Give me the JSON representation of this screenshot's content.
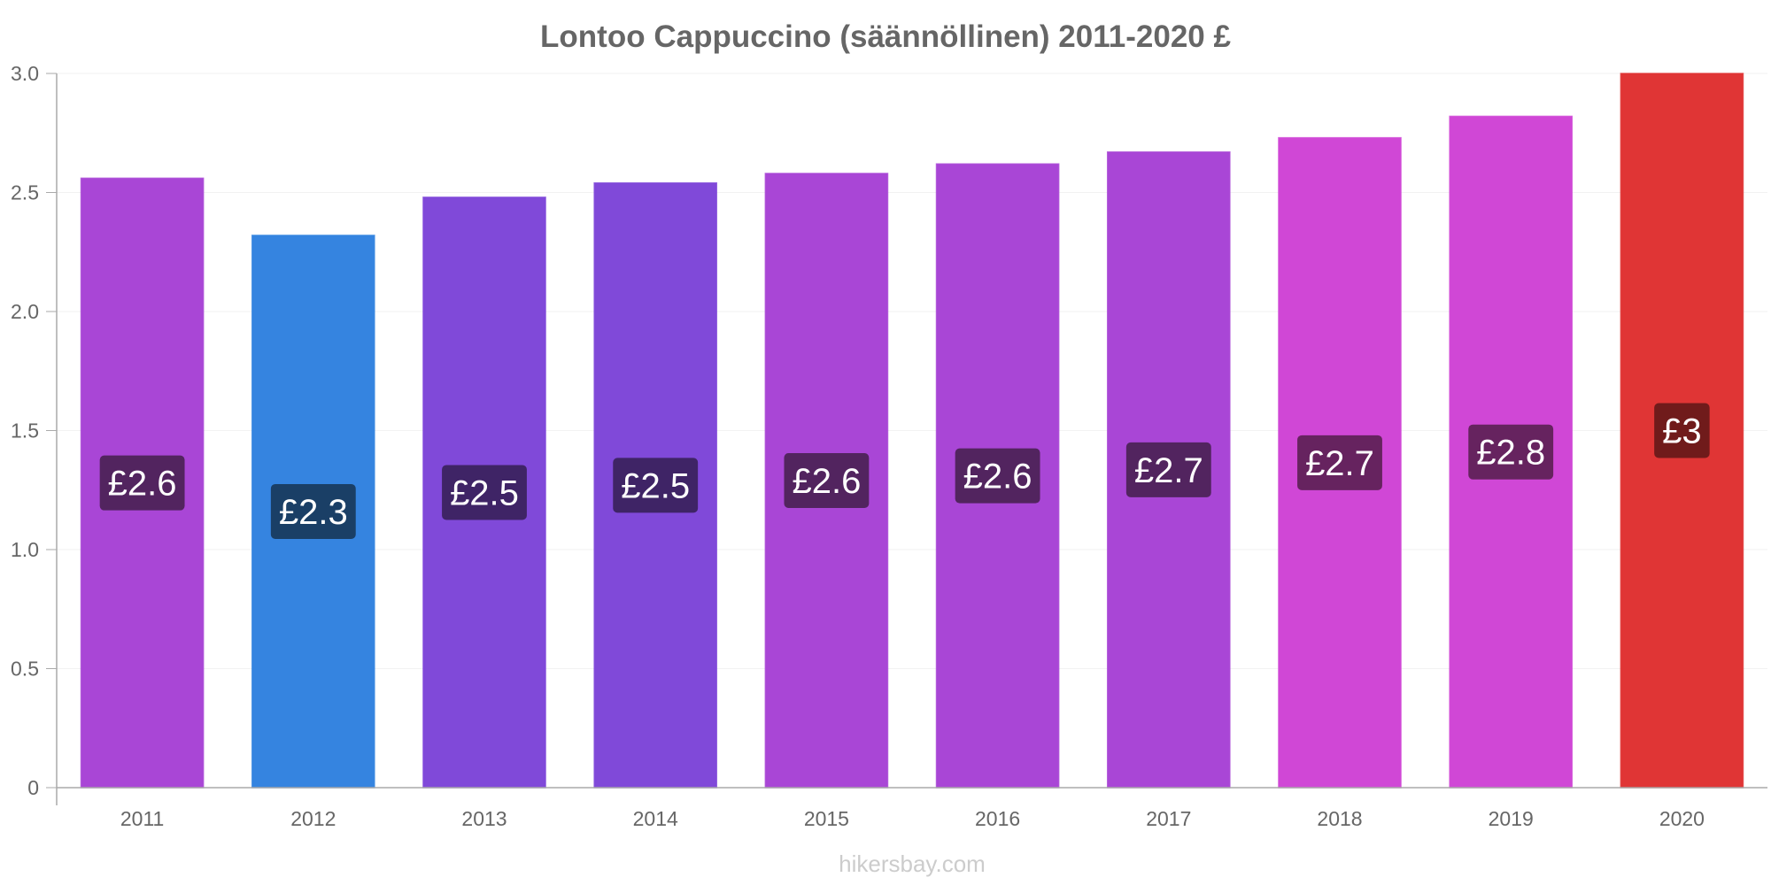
{
  "chart_data": {
    "type": "bar",
    "title": "Lontoo Cappuccino (säännöllinen) 2011-2020 £",
    "categories": [
      "2011",
      "2012",
      "2013",
      "2014",
      "2015",
      "2016",
      "2017",
      "2018",
      "2019",
      "2020"
    ],
    "values": [
      2.56,
      2.32,
      2.48,
      2.54,
      2.58,
      2.62,
      2.67,
      2.73,
      2.82,
      3.0
    ],
    "value_labels": [
      "£2.6",
      "£2.3",
      "£2.5",
      "£2.5",
      "£2.6",
      "£2.6",
      "£2.7",
      "£2.7",
      "£2.8",
      "£3"
    ],
    "bar_colors": [
      "#a946d6",
      "#3584e0",
      "#8049d9",
      "#8049d9",
      "#a946d6",
      "#a946d6",
      "#a946d6",
      "#d047d6",
      "#d047d6",
      "#e03535"
    ],
    "label_bg_colors": [
      "#52245f",
      "#1a3f66",
      "#3f2466",
      "#3f2466",
      "#52245f",
      "#52245f",
      "#52245f",
      "#66235f",
      "#66235f",
      "#701b1b"
    ],
    "y_ticks": [
      "0",
      "0.5",
      "1.0",
      "1.5",
      "2.0",
      "2.5",
      "3.0"
    ],
    "ylim": [
      0,
      3.0
    ],
    "xlabel": "",
    "ylabel": "",
    "grid": true,
    "legend": "none"
  },
  "footer": {
    "credit": "hikersbay.com"
  }
}
